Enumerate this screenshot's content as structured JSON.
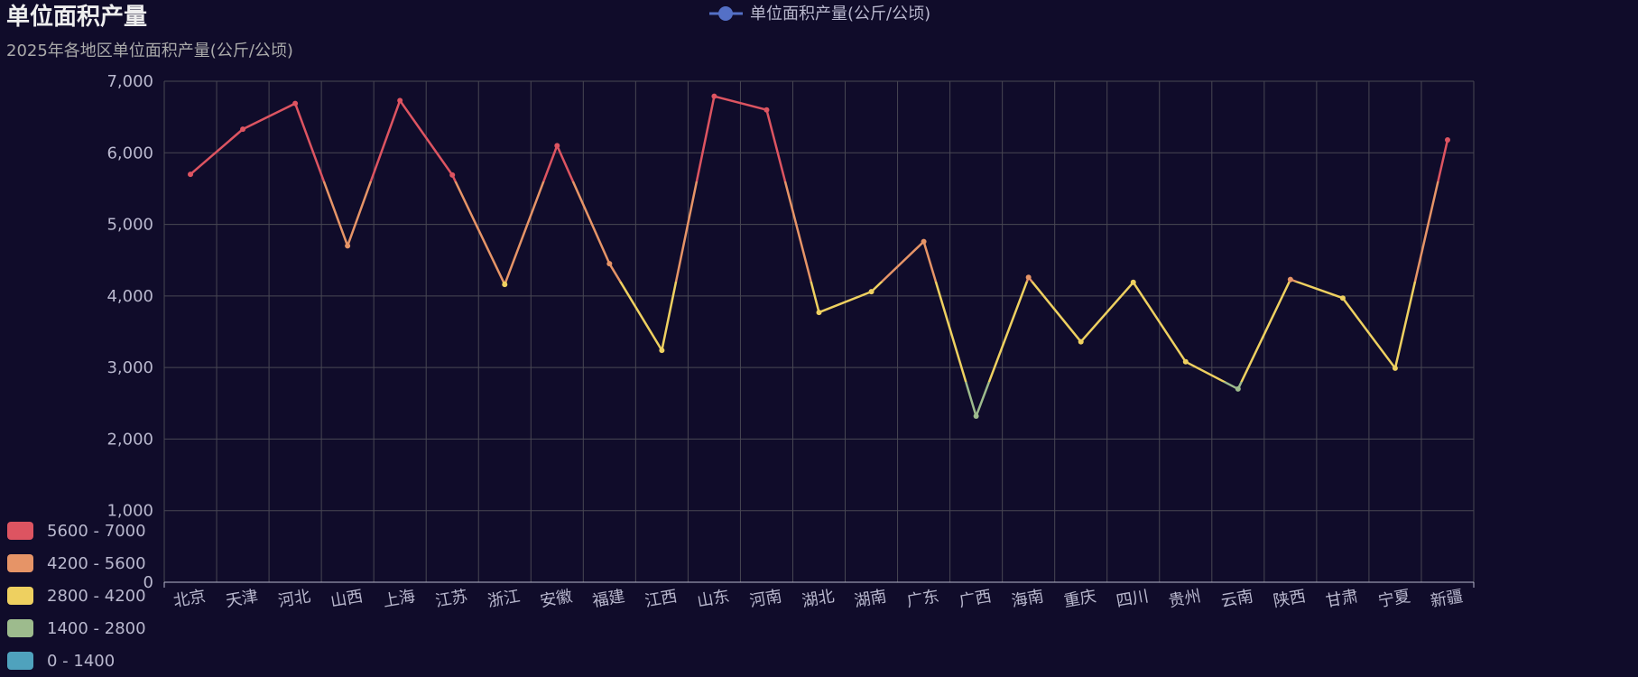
{
  "title": "单位面积产量",
  "subtitle": "2025年各地区单位面积产量(公斤/公顷)",
  "chart_data": {
    "type": "line",
    "title": "单位面积产量",
    "subtitle": "2025年各地区单位面积产量(公斤/公顷)",
    "xlabel": "",
    "ylabel": "",
    "ylim": [
      0,
      7000
    ],
    "yticks": [
      0,
      1000,
      2000,
      3000,
      4000,
      5000,
      6000,
      7000
    ],
    "grid": true,
    "legend_position": "top",
    "categories": [
      "北京",
      "天津",
      "河北",
      "山西",
      "上海",
      "江苏",
      "浙江",
      "安徽",
      "福建",
      "江西",
      "山东",
      "河南",
      "湖北",
      "湖南",
      "广东",
      "广西",
      "海南",
      "重庆",
      "四川",
      "贵州",
      "云南",
      "陕西",
      "甘肃",
      "宁夏",
      "新疆"
    ],
    "series": [
      {
        "name": "单位面积产量(公斤/公顷)",
        "values": [
          5700,
          6330,
          6690,
          4700,
          6730,
          5690,
          4160,
          6100,
          4450,
          3240,
          6790,
          6600,
          3770,
          4060,
          4760,
          2320,
          4260,
          3360,
          4190,
          3080,
          2700,
          4230,
          3970,
          2990,
          6180
        ]
      }
    ],
    "visual_map": {
      "pieces": [
        {
          "label": "5600 - 7000",
          "min": 5600,
          "max": 7000,
          "color": "#dd5461"
        },
        {
          "label": "4200 - 5600",
          "min": 4200,
          "max": 5600,
          "color": "#e69467"
        },
        {
          "label": "2800 - 4200",
          "min": 2800,
          "max": 4200,
          "color": "#eed060"
        },
        {
          "label": "1400 - 2800",
          "min": 1400,
          "max": 2800,
          "color": "#9dbb8d"
        },
        {
          "label": "0 - 1400",
          "min": 0,
          "max": 1400,
          "color": "#4fa2bd"
        }
      ]
    },
    "colors": {
      "background": "#100c2a",
      "legend_icon": "#5470c6",
      "axis_text": "#b9b8ce",
      "grid": "#484753"
    }
  }
}
